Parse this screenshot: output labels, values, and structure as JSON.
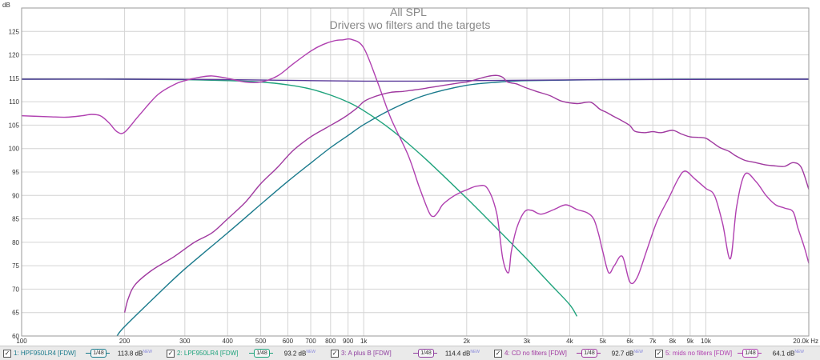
{
  "chart_data": {
    "type": "line",
    "title": "All SPL",
    "subtitle": "Drivers wo filters and the targets",
    "ylabel": "dB",
    "xscale": "log",
    "xlim": [
      100,
      20000
    ],
    "ylim": [
      60,
      130
    ],
    "grid": true,
    "x_ticks": [
      100,
      200,
      300,
      400,
      500,
      600,
      700,
      800,
      900,
      1000,
      2000,
      3000,
      4000,
      5000,
      6000,
      7000,
      8000,
      9000,
      10000,
      20000
    ],
    "x_tick_labels": [
      "100",
      "200",
      "300",
      "400",
      "500",
      "600",
      "700",
      "800",
      "900",
      "1k",
      "2k",
      "3k",
      "4k",
      "5k",
      "6k",
      "7k",
      "8k",
      "9k",
      "10k",
      "20.0k Hz"
    ],
    "y_ticks": [
      60,
      65,
      70,
      75,
      80,
      85,
      90,
      95,
      100,
      105,
      110,
      115,
      120,
      125
    ],
    "y_tick_labels": [
      "60",
      "65",
      "70",
      "75",
      "80",
      "85",
      "90",
      "95",
      "100",
      "105",
      "110",
      "115",
      "120",
      "125"
    ],
    "series": [
      {
        "name": "HPF950LR4 [FDW]",
        "color": "#1a7a8c",
        "x": [
          190,
          200,
          250,
          300,
          400,
          500,
          600,
          700,
          800,
          900,
          1000,
          1200,
          1500,
          2000,
          2500,
          3000,
          5000,
          10000,
          20000
        ],
        "y": [
          60,
          62,
          68.9,
          74.3,
          82,
          88.1,
          93,
          96.9,
          100.2,
          102.8,
          105.1,
          108.3,
          111.3,
          113.5,
          114.2,
          114.5,
          114.7,
          114.8,
          114.8
        ]
      },
      {
        "name": "LPF950LR4 [FDW]",
        "color": "#1fa37c",
        "x": [
          100,
          200,
          300,
          400,
          500,
          600,
          700,
          800,
          900,
          1000,
          1200,
          1500,
          2000,
          2500,
          3000,
          3500,
          4000,
          4200
        ],
        "y": [
          114.8,
          114.8,
          114.7,
          114.5,
          114.2,
          113.6,
          112.7,
          111.4,
          109.9,
          108.1,
          104.1,
          98.1,
          89.4,
          82.3,
          76.4,
          71.2,
          66.7,
          64.2
        ]
      },
      {
        "name": "A plus B [FDW]",
        "color": "#5a3a9a",
        "x": [
          100,
          200,
          400,
          700,
          1000,
          1500,
          2000,
          5000,
          20000
        ],
        "y": [
          114.8,
          114.8,
          114.7,
          114.5,
          114.4,
          114.4,
          114.5,
          114.7,
          114.8
        ]
      },
      {
        "name": "CD no filters [FDW]",
        "color": "#a03aa0",
        "x": [
          200,
          205,
          215,
          240,
          280,
          320,
          360,
          400,
          450,
          500,
          560,
          620,
          700,
          780,
          870,
          950,
          1000,
          1050,
          1120,
          1200,
          1300,
          1400,
          1500,
          1550,
          1650,
          1750,
          1900,
          2000,
          2100,
          2300,
          2450,
          2550,
          2620,
          2700,
          2800,
          2950,
          3200,
          3500,
          3800,
          4200,
          4600,
          4900,
          5100,
          5400,
          5700,
          6000,
          6200,
          6600,
          7000,
          7400,
          8000,
          8500,
          9000,
          9500,
          10000,
          10500,
          11000,
          11700,
          12200,
          13000,
          14000,
          15000,
          16000,
          17000,
          18000,
          19000,
          20000
        ],
        "y": [
          65,
          68,
          71,
          74,
          77,
          80,
          82,
          85,
          88.5,
          92.5,
          96,
          99.5,
          102.5,
          104.5,
          106.5,
          108.5,
          110,
          110.8,
          111.5,
          112,
          112.2,
          112.5,
          112.8,
          113,
          113.3,
          113.6,
          114,
          114.2,
          114.6,
          115.4,
          115.6,
          115.2,
          114.3,
          114,
          113.8,
          113.1,
          112.2,
          111.3,
          110.1,
          109.6,
          109.9,
          108.4,
          107.8,
          106.8,
          105.9,
          104.9,
          103.7,
          103.4,
          103.6,
          103.4,
          103.9,
          103.1,
          102.5,
          102.4,
          102.2,
          101.2,
          100.2,
          99.4,
          98.5,
          97.5,
          97,
          96.5,
          96.3,
          96.2,
          97,
          96,
          91.3
        ]
      },
      {
        "name": "mids no filters [FDW]",
        "color": "#b040b0",
        "x": [
          100,
          120,
          135,
          150,
          160,
          170,
          180,
          190,
          200,
          220,
          250,
          280,
          300,
          330,
          360,
          400,
          450,
          500,
          560,
          620,
          700,
          760,
          820,
          870,
          920,
          1000,
          1100,
          1200,
          1350,
          1450,
          1550,
          1600,
          1650,
          1700,
          1800,
          1900,
          2000,
          2150,
          2300,
          2450,
          2550,
          2650,
          2700,
          2800,
          2950,
          3100,
          3300,
          3600,
          3900,
          4200,
          4500,
          4700,
          4850,
          5000,
          5200,
          5400,
          5700,
          6000,
          6300,
          6700,
          7200,
          7800,
          8300,
          8700,
          9300,
          10000,
          10600,
          11200,
          11800,
          12300,
          13000,
          14000,
          15000,
          16000,
          17000,
          18000,
          18600,
          19400,
          20000
        ],
        "y": [
          107,
          106.8,
          106.7,
          107,
          107.3,
          107,
          105.5,
          103.6,
          103.5,
          107,
          111.5,
          113.7,
          114.5,
          115.2,
          115.5,
          115,
          114.2,
          114.2,
          115.5,
          118,
          120.8,
          122.2,
          123,
          123.2,
          123.3,
          121.5,
          114,
          106.5,
          98.5,
          92,
          86.5,
          85.5,
          86.5,
          88,
          89.5,
          90.5,
          91.2,
          92,
          91.5,
          86,
          76.5,
          73.5,
          78,
          83,
          86.5,
          86.8,
          86,
          87,
          88,
          87,
          86.3,
          85,
          82,
          78,
          73.5,
          75,
          77,
          71.5,
          72.5,
          78,
          84.5,
          89.5,
          93.5,
          95.2,
          93.5,
          91.5,
          90,
          84,
          76.5,
          87.5,
          94.5,
          93,
          90,
          88,
          87.3,
          86.5,
          83,
          79,
          75.5
        ]
      }
    ]
  },
  "legend": {
    "items": [
      {
        "index": "1:",
        "name": "HPF950LR4 [FDW]",
        "smoothing": "1/48",
        "value": "113.8 dB",
        "tag": "NEW",
        "color": "#1a7a8c"
      },
      {
        "index": "2:",
        "name": "LPF950LR4 [FDW]",
        "smoothing": "1/48",
        "value": "93.2 dB",
        "tag": "NEW",
        "color": "#1fa37c"
      },
      {
        "index": "3:",
        "name": "A plus B [FDW]",
        "smoothing": "1/48",
        "value": "114.4 dB",
        "tag": "NEW",
        "color": "#9040a0"
      },
      {
        "index": "4:",
        "name": "CD no filters [FDW]",
        "smoothing": "1/48",
        "value": "92.7 dB",
        "tag": "NEW",
        "color": "#a03aa0"
      },
      {
        "index": "5:",
        "name": "mids no filters [FDW]",
        "smoothing": "1/48",
        "value": "64.1 dB",
        "tag": "NEW",
        "color": "#b040b0"
      }
    ]
  }
}
